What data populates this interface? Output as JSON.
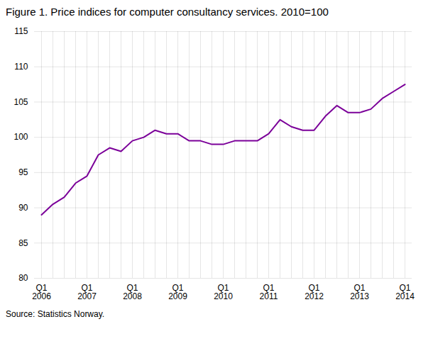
{
  "chart_data": {
    "type": "line",
    "title": "Figure 1. Price indices for computer consultancy services. 2010=100",
    "caption": "Source: Statistics Norway.",
    "categories": [
      "Q1\n2006",
      null,
      null,
      null,
      "Q1\n2007",
      null,
      null,
      null,
      "Q1\n2008",
      null,
      null,
      null,
      "Q1\n2009",
      null,
      null,
      null,
      "Q1\n2010",
      null,
      null,
      null,
      "Q1\n2011",
      null,
      null,
      null,
      "Q1\n2012",
      null,
      null,
      null,
      "Q1\n2013",
      null,
      null,
      null,
      "Q1\n2014"
    ],
    "values": [
      89.0,
      90.5,
      91.5,
      93.5,
      94.5,
      97.5,
      98.5,
      98.0,
      99.5,
      100.0,
      101.0,
      100.5,
      100.5,
      99.5,
      99.5,
      99.0,
      99.0,
      99.5,
      99.5,
      99.5,
      100.5,
      102.5,
      101.5,
      101.0,
      101.0,
      103.0,
      104.5,
      103.5,
      103.5,
      104.0,
      105.5,
      106.5,
      107.5
    ],
    "color": "#7B0099",
    "ylim": [
      80,
      115
    ],
    "yticks": [
      80,
      85,
      90,
      95,
      100,
      105,
      110,
      115
    ],
    "grid": true
  }
}
